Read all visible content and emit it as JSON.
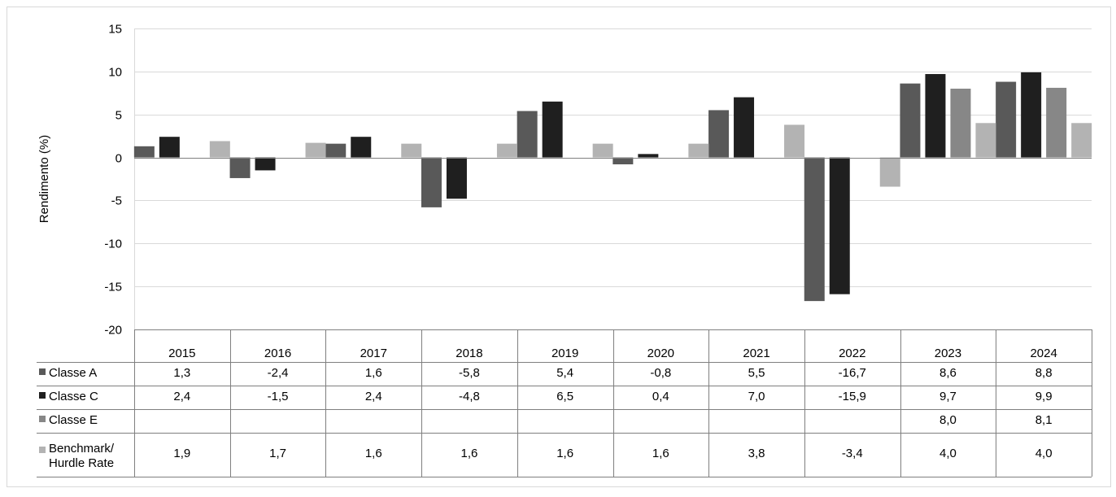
{
  "colors": {
    "background": "#ffffff",
    "frame": "#d9d9d9",
    "grid": "#d9d9d9",
    "axis": "#7f7f7f",
    "text": "#000000"
  },
  "chart_data": {
    "type": "bar",
    "ylabel": "Rendimento (%)",
    "ylim": [
      -20,
      15
    ],
    "yticks": [
      15,
      10,
      5,
      0,
      -5,
      -10,
      -15,
      -20
    ],
    "grid": true,
    "legend": "data-table-left",
    "categories": [
      "2015",
      "2016",
      "2017",
      "2018",
      "2019",
      "2020",
      "2021",
      "2022",
      "2023",
      "2024"
    ],
    "series": [
      {
        "name": "Classe A",
        "color": "#595959",
        "values": [
          1.3,
          -2.4,
          1.6,
          -5.8,
          5.4,
          -0.8,
          5.5,
          -16.7,
          8.6,
          8.8
        ],
        "labels": [
          "1,3",
          "-2,4",
          "1,6",
          "-5,8",
          "5,4",
          "-0,8",
          "5,5",
          "-16,7",
          "8,6",
          "8,8"
        ]
      },
      {
        "name": "Classe C",
        "color": "#1f1f1f",
        "values": [
          2.4,
          -1.5,
          2.4,
          -4.8,
          6.5,
          0.4,
          7.0,
          -15.9,
          9.7,
          9.9
        ],
        "labels": [
          "2,4",
          "-1,5",
          "2,4",
          "-4,8",
          "6,5",
          "0,4",
          "7,0",
          "-15,9",
          "9,7",
          "9,9"
        ]
      },
      {
        "name": "Classe E",
        "color": "#878787",
        "values": [
          null,
          null,
          null,
          null,
          null,
          null,
          null,
          null,
          8.0,
          8.1
        ],
        "labels": [
          "",
          "",
          "",
          "",
          "",
          "",
          "",
          "",
          "8,0",
          "8,1"
        ]
      },
      {
        "name": "Benchmark/\nHurdle Rate",
        "color": "#b3b3b3",
        "values": [
          1.9,
          1.7,
          1.6,
          1.6,
          1.6,
          1.6,
          3.8,
          -3.4,
          4.0,
          4.0
        ],
        "labels": [
          "1,9",
          "1,7",
          "1,6",
          "1,6",
          "1,6",
          "1,6",
          "3,8",
          "-3,4",
          "4,0",
          "4,0"
        ]
      }
    ]
  }
}
